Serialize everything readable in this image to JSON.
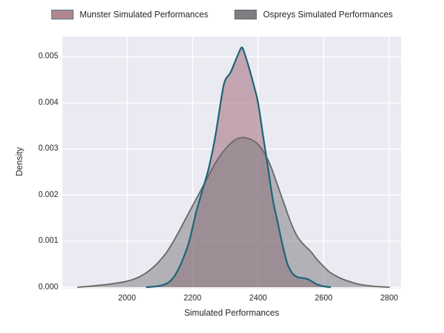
{
  "figure": {
    "background": "#ffffff",
    "plot_background": "#eaeaf2",
    "grid_color": "#ffffff",
    "text_color": "#262626"
  },
  "legend": {
    "position": "top-center",
    "items": [
      {
        "label": "Munster Simulated Performances",
        "swatch_fill": "#b28691",
        "swatch_border": "#44748a"
      },
      {
        "label": "Ospreys Simulated Performances",
        "swatch_fill": "#7f7f83",
        "swatch_border": "#5f5f5f"
      }
    ]
  },
  "chart_data": {
    "type": "area",
    "subtype": "kde-density",
    "title": "",
    "xlabel": "Simulated Performances",
    "ylabel": "Density",
    "xlim": [
      1803,
      2836
    ],
    "ylim": [
      -3e-05,
      0.005436
    ],
    "grid": true,
    "legend_position": "top",
    "xticks": [
      2000,
      2200,
      2400,
      2600,
      2800
    ],
    "xtick_labels": [
      "2000",
      "2200",
      "2400",
      "2600",
      "2800"
    ],
    "yticks": [
      0,
      0.001,
      0.002,
      0.003,
      0.004,
      0.005
    ],
    "ytick_labels": [
      "0.000",
      "0.001",
      "0.002",
      "0.003",
      "0.004",
      "0.005"
    ],
    "series": [
      {
        "name": "Munster Simulated Performances",
        "line_color": "#1f6578",
        "line_width": 2.4,
        "fill_color": "#a06b7a",
        "fill_opacity": 0.55,
        "points": [
          [
            2060,
            0
          ],
          [
            2090,
            2e-05
          ],
          [
            2110,
            5e-05
          ],
          [
            2130,
            0.00012
          ],
          [
            2150,
            0.0003
          ],
          [
            2170,
            0.0006
          ],
          [
            2190,
            0.001
          ],
          [
            2210,
            0.0016
          ],
          [
            2230,
            0.0021
          ],
          [
            2250,
            0.0026
          ],
          [
            2270,
            0.0033
          ],
          [
            2290,
            0.0042
          ],
          [
            2300,
            0.0045
          ],
          [
            2315,
            0.00465
          ],
          [
            2330,
            0.0049
          ],
          [
            2345,
            0.00515
          ],
          [
            2352,
            0.0052
          ],
          [
            2360,
            0.00505
          ],
          [
            2375,
            0.0047
          ],
          [
            2390,
            0.0043
          ],
          [
            2400,
            0.004
          ],
          [
            2415,
            0.0033
          ],
          [
            2430,
            0.0026
          ],
          [
            2445,
            0.0019
          ],
          [
            2460,
            0.0014
          ],
          [
            2475,
            0.0009
          ],
          [
            2490,
            0.0005
          ],
          [
            2505,
            0.0003
          ],
          [
            2520,
            0.00022
          ],
          [
            2535,
            0.0002
          ],
          [
            2550,
            0.00018
          ],
          [
            2565,
            0.00012
          ],
          [
            2580,
            6e-05
          ],
          [
            2600,
            2e-05
          ],
          [
            2620,
            0
          ]
        ]
      },
      {
        "name": "Ospreys Simulated Performances",
        "line_color": "#6a6a6a",
        "line_width": 2.0,
        "fill_color": "#77777b",
        "fill_opacity": 0.5,
        "points": [
          [
            1850,
            0
          ],
          [
            1900,
            3e-05
          ],
          [
            1950,
            7e-05
          ],
          [
            2000,
            0.00013
          ],
          [
            2030,
            0.0002
          ],
          [
            2060,
            0.00032
          ],
          [
            2090,
            0.0005
          ],
          [
            2120,
            0.00075
          ],
          [
            2150,
            0.0011
          ],
          [
            2180,
            0.0015
          ],
          [
            2210,
            0.0019
          ],
          [
            2240,
            0.0023
          ],
          [
            2270,
            0.0027
          ],
          [
            2300,
            0.003
          ],
          [
            2330,
            0.0032
          ],
          [
            2355,
            0.00325
          ],
          [
            2380,
            0.0032
          ],
          [
            2400,
            0.0031
          ],
          [
            2420,
            0.0029
          ],
          [
            2440,
            0.0026
          ],
          [
            2460,
            0.0022
          ],
          [
            2480,
            0.0018
          ],
          [
            2500,
            0.0014
          ],
          [
            2520,
            0.0011
          ],
          [
            2540,
            0.00092
          ],
          [
            2560,
            0.00078
          ],
          [
            2580,
            0.0006
          ],
          [
            2600,
            0.00045
          ],
          [
            2620,
            0.00032
          ],
          [
            2650,
            0.0002
          ],
          [
            2680,
            0.00012
          ],
          [
            2710,
            6e-05
          ],
          [
            2740,
            3e-05
          ],
          [
            2770,
            1e-05
          ],
          [
            2800,
            0
          ]
        ]
      }
    ]
  }
}
